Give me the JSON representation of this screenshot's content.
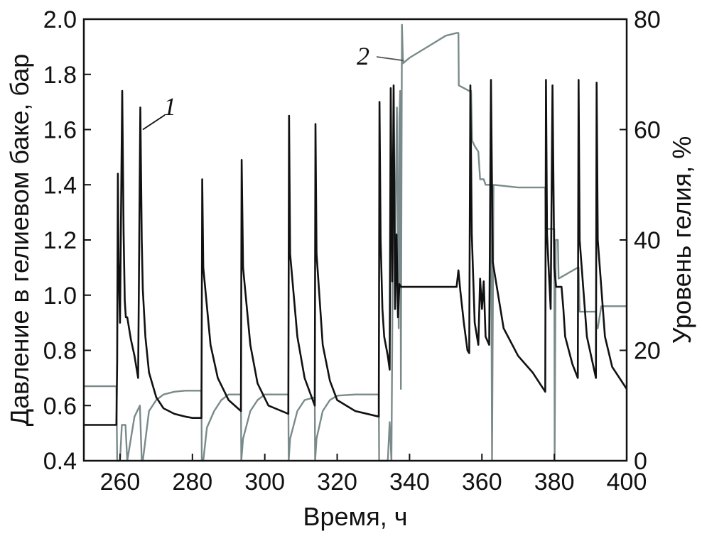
{
  "chart_data": {
    "type": "line",
    "xlabel": "Время, ч",
    "ylabel": "Давление в гелиевом баке, бар",
    "y2label": "Уровень гелия, %",
    "xlim": [
      250,
      400
    ],
    "ylim": [
      0.4,
      2.0
    ],
    "y2lim": [
      0,
      80
    ],
    "xticks": [
      "260",
      "280",
      "300",
      "320",
      "340",
      "360",
      "380",
      "400"
    ],
    "yticks": [
      "0.4",
      "0.6",
      "0.8",
      "1.0",
      "1.2",
      "1.4",
      "1.6",
      "1.8",
      "2.0"
    ],
    "y2ticks": [
      "0",
      "20",
      "40",
      "60",
      "80"
    ],
    "grid": false,
    "series": [
      {
        "name": "1",
        "axis": "left",
        "color": "#111111",
        "x": [
          250,
          259,
          259.2,
          259.4,
          259.6,
          260,
          260.6,
          261,
          261.3,
          261.6,
          262,
          263,
          264,
          265,
          265.6,
          266,
          266.3,
          267,
          268,
          270,
          272,
          275,
          278,
          280,
          282.5,
          282.7,
          283,
          285,
          287,
          290,
          293.4,
          293.6,
          294,
          296,
          298,
          301,
          306.5,
          306.7,
          307,
          309,
          311,
          313.8,
          314,
          314.3,
          316,
          318,
          320,
          325,
          331.5,
          331.7,
          332,
          332.5,
          333,
          334,
          334.5,
          334.8,
          335.2,
          335.6,
          336,
          336.4,
          336.8,
          337.2,
          337.6,
          338,
          340,
          345,
          350,
          353,
          353.5,
          354,
          355,
          356,
          356.5,
          356.8,
          357.2,
          358,
          359,
          359.5,
          360,
          360.5,
          361,
          362,
          362.5,
          363,
          366,
          370,
          374,
          377.5,
          377.7,
          378,
          379,
          379.5,
          380,
          380.5,
          381,
          382,
          382.5,
          383,
          385,
          386.5,
          386.7,
          387,
          389,
          391.5,
          391.7,
          392,
          394,
          396,
          400
        ],
        "y": [
          0.53,
          0.53,
          0.76,
          1.44,
          1.12,
          0.9,
          1.74,
          1.22,
          0.98,
          0.92,
          0.92,
          0.84,
          0.78,
          0.7,
          1.68,
          1.2,
          1.02,
          0.85,
          0.72,
          0.63,
          0.59,
          0.57,
          0.56,
          0.555,
          0.555,
          1.42,
          1.1,
          0.82,
          0.7,
          0.62,
          0.58,
          1.49,
          1.1,
          0.82,
          0.68,
          0.6,
          0.57,
          1.65,
          1.15,
          0.85,
          0.7,
          0.6,
          1.62,
          1.15,
          0.82,
          0.69,
          0.62,
          0.58,
          0.56,
          1.7,
          1.2,
          0.95,
          0.85,
          0.78,
          0.73,
          1.75,
          1.05,
          1.76,
          0.95,
          1.22,
          0.92,
          1.04,
          1.03,
          1.03,
          1.03,
          1.03,
          1.03,
          1.03,
          1.09,
          1.02,
          0.9,
          0.8,
          0.79,
          1.76,
          1.22,
          0.9,
          0.82,
          1.06,
          0.95,
          1.05,
          0.85,
          0.82,
          1.78,
          1.12,
          0.88,
          0.78,
          0.72,
          0.65,
          1.78,
          1.22,
          0.95,
          1.76,
          1.1,
          1.03,
          1.03,
          1.03,
          0.95,
          0.85,
          0.75,
          0.7,
          1.78,
          1.2,
          0.85,
          0.7,
          1.77,
          1.2,
          0.85,
          0.74,
          0.66
        ]
      },
      {
        "name": "2",
        "axis": "right",
        "color": "#7a8a8a",
        "x": [
          250,
          259,
          259.2,
          260,
          260.5,
          261.5,
          262,
          262,
          264,
          265.5,
          266,
          266.3,
          268,
          270,
          272,
          275,
          278,
          280,
          282.5,
          282.6,
          283,
          284,
          286,
          288,
          290,
          293.4,
          293.5,
          294,
          296,
          298,
          300,
          306.5,
          306.6,
          307,
          309,
          311,
          313.8,
          313.9,
          314.3,
          316,
          318,
          320,
          325,
          331.5,
          331.6,
          334,
          334.5,
          335,
          335.6,
          336,
          336.5,
          337,
          337.2,
          337.4,
          337.6,
          337.9,
          338.2,
          340,
          345,
          350,
          353,
          353.5,
          353.6,
          356.5,
          357,
          357.3,
          358,
          359,
          359.5,
          360.5,
          361,
          362.5,
          362.8,
          363.2,
          370,
          377.5,
          377.6,
          380,
          380.1,
          380.4,
          381,
          381.2,
          386.5,
          386.7,
          387,
          391.5,
          391.7,
          392,
          393,
          394,
          400
        ],
        "y": [
          13.5,
          13.5,
          0,
          0,
          6.5,
          6.5,
          0,
          0,
          8,
          10,
          0,
          0,
          9,
          11,
          12,
          12.5,
          12.7,
          12.7,
          12.7,
          0,
          0,
          6,
          9,
          11,
          12,
          12,
          0,
          4,
          9,
          11,
          12,
          12,
          0,
          4,
          9,
          11,
          11.5,
          0,
          4,
          9,
          11,
          11.8,
          12,
          12,
          0,
          0,
          7,
          0,
          60,
          38,
          64,
          24,
          62,
          67,
          13,
          79,
          72,
          73,
          75,
          77,
          77.5,
          77.5,
          68,
          67,
          67,
          58,
          57,
          56,
          51,
          51,
          50,
          50,
          0,
          50,
          49.5,
          49.5,
          42,
          42,
          0,
          40,
          40,
          33,
          35,
          35,
          27,
          27,
          24,
          24,
          28,
          28,
          28
        ]
      }
    ],
    "annotations": [
      {
        "text": "1",
        "series": 0
      },
      {
        "text": "2",
        "series": 1
      }
    ]
  }
}
